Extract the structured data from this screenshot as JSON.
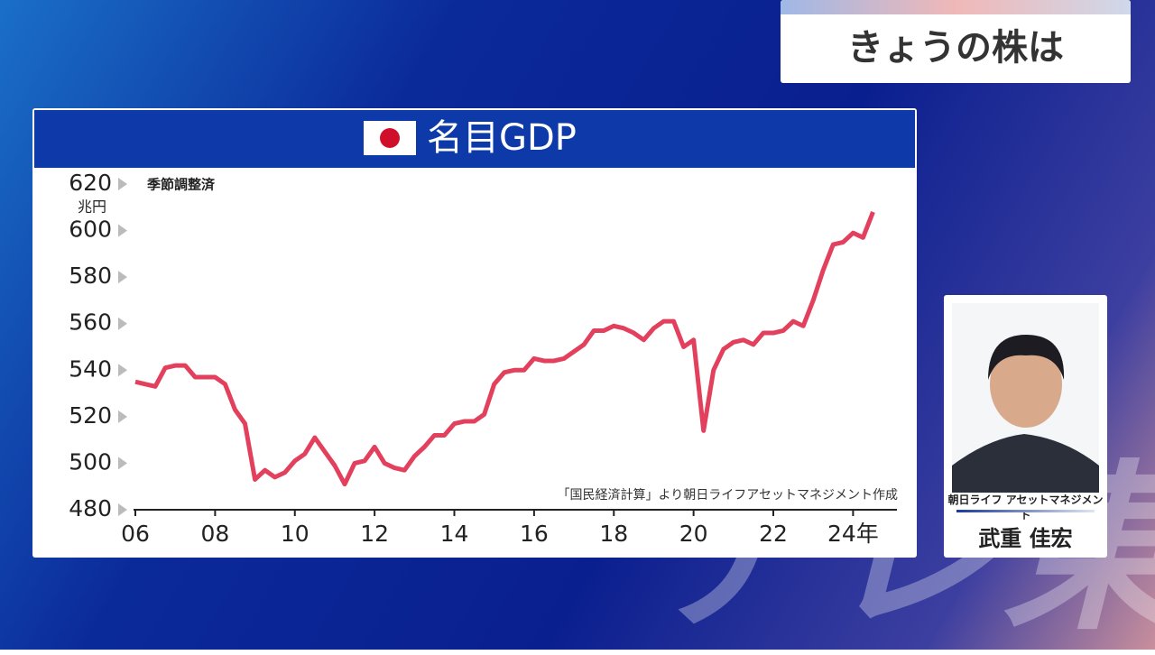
{
  "header": {
    "program": "きょうの株は"
  },
  "chart_data": {
    "type": "line",
    "title": "名目GDP",
    "subtitle": "季節調整済",
    "y_unit": "兆円",
    "source": "「国民経済計算」より朝日ライフアセットマネジメント作成",
    "x": [
      2006,
      2006.25,
      2006.5,
      2006.75,
      2007,
      2007.25,
      2007.5,
      2007.75,
      2008,
      2008.25,
      2008.5,
      2008.75,
      2009,
      2009.25,
      2009.5,
      2009.75,
      2010,
      2010.25,
      2010.5,
      2010.75,
      2011,
      2011.25,
      2011.5,
      2011.75,
      2012,
      2012.25,
      2012.5,
      2012.75,
      2013,
      2013.25,
      2013.5,
      2013.75,
      2014,
      2014.25,
      2014.5,
      2014.75,
      2015,
      2015.25,
      2015.5,
      2015.75,
      2016,
      2016.25,
      2016.5,
      2016.75,
      2017,
      2017.25,
      2017.5,
      2017.75,
      2018,
      2018.25,
      2018.5,
      2018.75,
      2019,
      2019.25,
      2019.5,
      2019.75,
      2020,
      2020.25,
      2020.5,
      2020.75,
      2021,
      2021.25,
      2021.5,
      2021.75,
      2022,
      2022.25,
      2022.5,
      2022.75,
      2023,
      2023.25,
      2023.5,
      2023.75,
      2024,
      2024.25,
      2024.5
    ],
    "series": [
      {
        "name": "名目GDP",
        "color": "#e2405c",
        "values": [
          535,
          534,
          533,
          541,
          542,
          542,
          537,
          537,
          537,
          534,
          523,
          517,
          493,
          497,
          494,
          496,
          501,
          504,
          511,
          505,
          499,
          491,
          500,
          501,
          507,
          500,
          498,
          497,
          503,
          507,
          512,
          512,
          517,
          518,
          518,
          521,
          534,
          539,
          540,
          540,
          545,
          544,
          544,
          545,
          548,
          551,
          557,
          557,
          559,
          558,
          556,
          553,
          558,
          561,
          561,
          550,
          553,
          514,
          540,
          549,
          552,
          553,
          551,
          556,
          556,
          557,
          561,
          559,
          570,
          583,
          594,
          595,
          599,
          597,
          608
        ]
      }
    ],
    "xlim": [
      2006,
      2025.1
    ],
    "ylim": [
      480,
      620
    ],
    "xticks": [
      {
        "value": 2006,
        "label": "06"
      },
      {
        "value": 2008,
        "label": "08"
      },
      {
        "value": 2010,
        "label": "10"
      },
      {
        "value": 2012,
        "label": "12"
      },
      {
        "value": 2014,
        "label": "14"
      },
      {
        "value": 2016,
        "label": "16"
      },
      {
        "value": 2018,
        "label": "18"
      },
      {
        "value": 2020,
        "label": "20"
      },
      {
        "value": 2022,
        "label": "22"
      },
      {
        "value": 2024,
        "label": "24年"
      }
    ],
    "yticks": [
      480,
      500,
      520,
      540,
      560,
      580,
      600,
      620
    ]
  },
  "presenter": {
    "company": "朝日ライフ アセットマネジメント",
    "name": "武重 佳宏"
  },
  "watermark": "テレ東"
}
